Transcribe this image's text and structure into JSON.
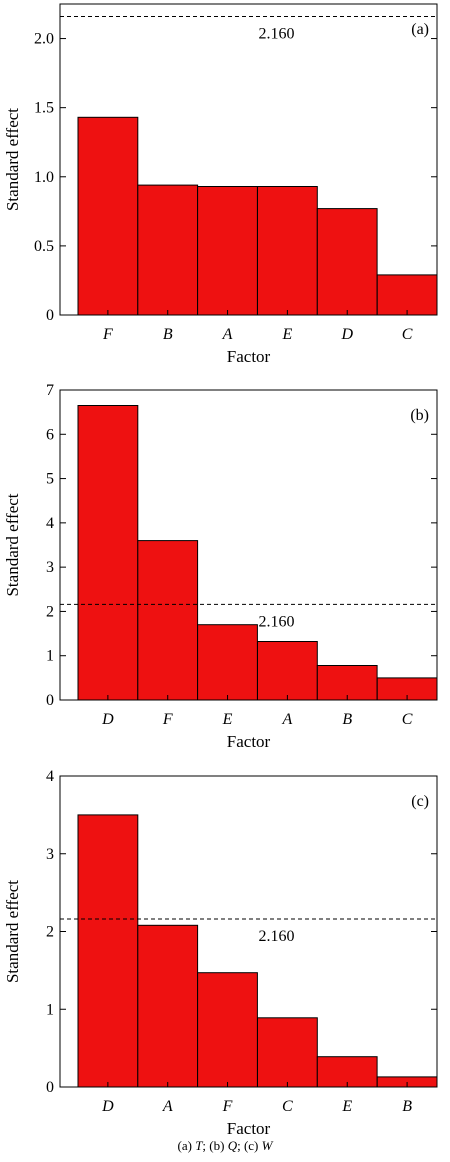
{
  "chart_data": [
    {
      "type": "bar",
      "panel_label": "(a)",
      "categories": [
        "F",
        "B",
        "A",
        "E",
        "D",
        "C"
      ],
      "values": [
        1.43,
        0.94,
        0.93,
        0.93,
        0.77,
        0.29
      ],
      "xlabel": "Factor",
      "ylabel": "Standard effect",
      "ylim": [
        0,
        2.25
      ],
      "yticks": [
        "0",
        "0.5",
        "1.0",
        "1.5",
        "2.0"
      ],
      "ytick_values": [
        0,
        0.5,
        1.0,
        1.5,
        2.0
      ],
      "reference_line": {
        "value": 2.16,
        "label": "2.160",
        "style": "dashed"
      },
      "bar_color": "#ee1111"
    },
    {
      "type": "bar",
      "panel_label": "(b)",
      "categories": [
        "D",
        "F",
        "E",
        "A",
        "B",
        "C"
      ],
      "values": [
        6.65,
        3.6,
        1.7,
        1.32,
        0.78,
        0.5
      ],
      "xlabel": "Factor",
      "ylabel": "Standard effect",
      "ylim": [
        0,
        7
      ],
      "yticks": [
        "0",
        "1",
        "2",
        "3",
        "4",
        "5",
        "6",
        "7"
      ],
      "ytick_values": [
        0,
        1,
        2,
        3,
        4,
        5,
        6,
        7
      ],
      "reference_line": {
        "value": 2.16,
        "label": "2.160",
        "style": "dashed"
      },
      "bar_color": "#ee1111"
    },
    {
      "type": "bar",
      "panel_label": "(c)",
      "categories": [
        "D",
        "A",
        "F",
        "C",
        "E",
        "B"
      ],
      "values": [
        3.5,
        2.08,
        1.47,
        0.89,
        0.39,
        0.13
      ],
      "xlabel": "Factor",
      "ylabel": "Standard effect",
      "ylim": [
        0,
        4
      ],
      "yticks": [
        "0",
        "1",
        "2",
        "3",
        "4"
      ],
      "ytick_values": [
        0,
        1,
        2,
        3,
        4
      ],
      "reference_line": {
        "value": 2.16,
        "label": "2.160",
        "style": "dashed"
      },
      "bar_color": "#ee1111"
    }
  ],
  "caption": {
    "parts": [
      "(a) ",
      "T",
      "; (b) ",
      "Q",
      "; (c) ",
      "W"
    ]
  }
}
